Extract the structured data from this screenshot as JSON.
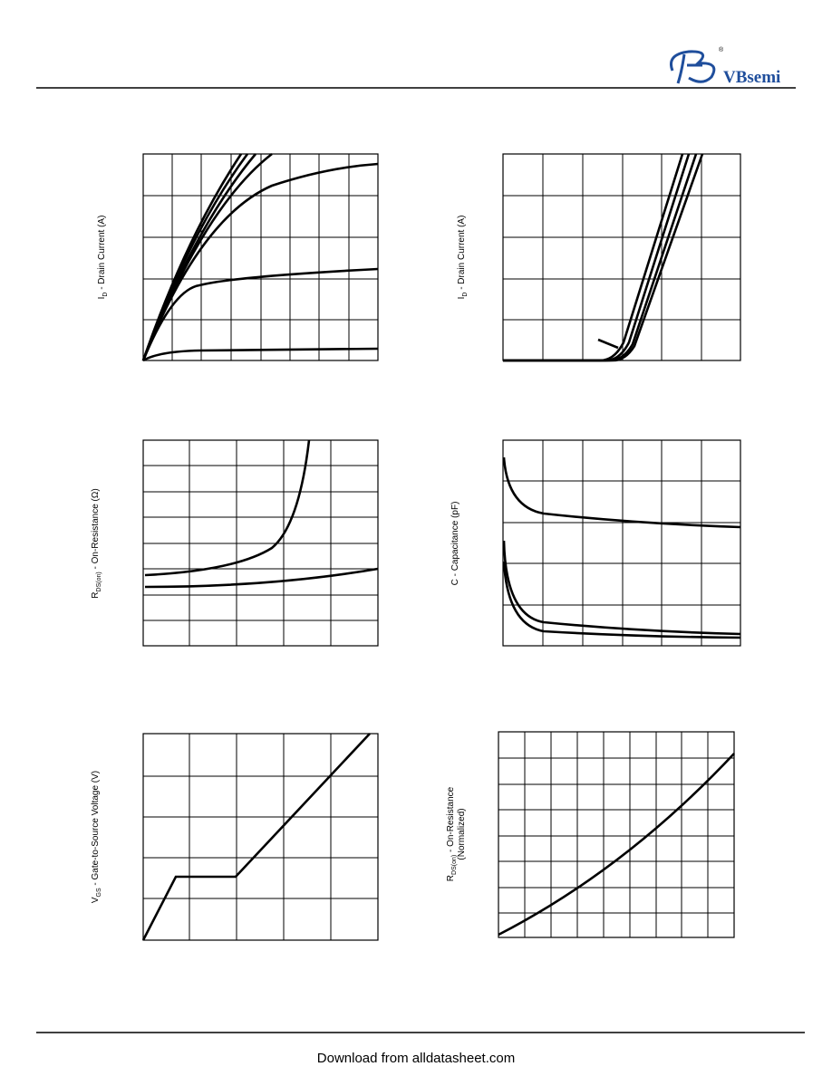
{
  "header": {
    "logo": "VBsemi",
    "registered": "®"
  },
  "charts": [
    {
      "y_label": {
        "main": "I",
        "sub": "D",
        "rest": " -   Drain Current (A)"
      }
    },
    {
      "y_label": {
        "main": "I",
        "sub": "D",
        "rest": " -   Drain Current (A)"
      }
    },
    {
      "y_label": {
        "main": "R",
        "sub": "DS(on)",
        "rest": " -  On-Resistance (Ω)"
      }
    },
    {
      "y_label": {
        "main": "C",
        "rest": "  -   Capacitance (pF)"
      }
    },
    {
      "y_label": {
        "main": "V",
        "sub": "GS",
        "rest": "  -   Gate-to-Source Voltage (V)"
      }
    },
    {
      "y_label": {
        "main": "R",
        "sub": "DS(on)",
        "rest": " - On-Resistance",
        "line2": "(Normalized)"
      }
    }
  ],
  "footer": {
    "text": "Download from alldatasheet.com"
  }
}
